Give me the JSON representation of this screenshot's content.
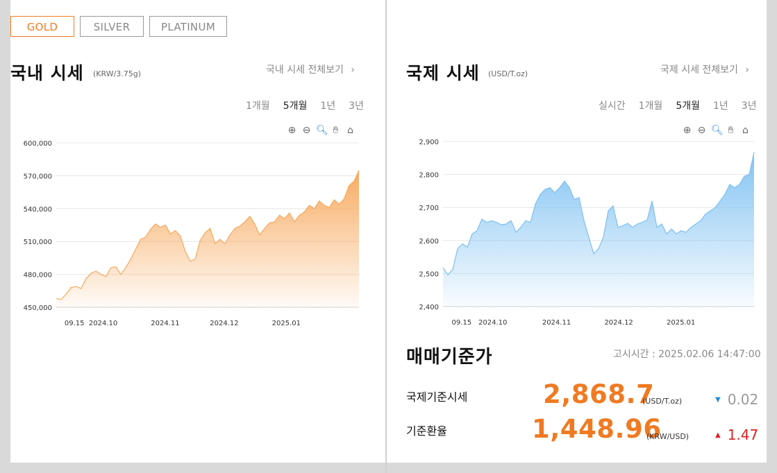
{
  "metal_tabs": [
    {
      "label": "GOLD",
      "active": true
    },
    {
      "label": "SILVER",
      "active": false
    },
    {
      "label": "PLATINUM",
      "active": false
    }
  ],
  "domestic": {
    "title": "국내 시세",
    "unit": "(KRW/3.75g)",
    "more_link": "국내 시세 전체보기",
    "periods": [
      "1개월",
      "5개월",
      "1년",
      "3년"
    ],
    "selected_period": "5개월",
    "chart_data": {
      "type": "area",
      "color": "#f7a75a",
      "yticks": [
        "600,000",
        "570,000",
        "540,000",
        "510,000",
        "480,000",
        "450,000"
      ],
      "ylim": [
        450000,
        600000
      ],
      "xticks": [
        "09.15",
        "2024.10",
        "2024.11",
        "2024.12",
        "2025.01"
      ],
      "y": [
        458000,
        457000,
        462000,
        468000,
        469000,
        467000,
        476000,
        481000,
        483000,
        480000,
        478000,
        486000,
        487000,
        480000,
        486000,
        494000,
        503000,
        512000,
        514000,
        521000,
        526000,
        523000,
        525000,
        517000,
        520000,
        515000,
        501000,
        492000,
        494000,
        511000,
        518000,
        522000,
        508000,
        512000,
        508000,
        516000,
        522000,
        524000,
        528000,
        533000,
        526000,
        516000,
        522000,
        527000,
        528000,
        534000,
        531000,
        536000,
        528000,
        534000,
        537000,
        543000,
        540000,
        547000,
        543000,
        541000,
        548000,
        544000,
        549000,
        561000,
        565000,
        575000
      ]
    }
  },
  "international": {
    "title": "국제 시세",
    "unit": "(USD/T.oz)",
    "more_link": "국제 시세 전체보기",
    "periods": [
      "실시간",
      "1개월",
      "5개월",
      "1년",
      "3년"
    ],
    "selected_period": "5개월",
    "chart_data": {
      "type": "area",
      "color": "#7cc0f2",
      "yticks": [
        "2,900",
        "2,800",
        "2,700",
        "2,600",
        "2,500",
        "2,400"
      ],
      "ylim": [
        2400,
        2900
      ],
      "xticks": [
        "09.15",
        "2024.10",
        "2024.11",
        "2024.12",
        "2025.01"
      ],
      "y": [
        2518,
        2496,
        2512,
        2575,
        2590,
        2580,
        2620,
        2630,
        2665,
        2655,
        2660,
        2655,
        2648,
        2650,
        2660,
        2625,
        2640,
        2660,
        2655,
        2710,
        2740,
        2755,
        2760,
        2745,
        2760,
        2780,
        2760,
        2725,
        2730,
        2660,
        2610,
        2560,
        2575,
        2610,
        2690,
        2705,
        2640,
        2645,
        2652,
        2640,
        2650,
        2655,
        2662,
        2720,
        2640,
        2650,
        2620,
        2635,
        2620,
        2630,
        2625,
        2640,
        2650,
        2660,
        2680,
        2690,
        2700,
        2720,
        2740,
        2770,
        2760,
        2770,
        2795,
        2800,
        2868
      ]
    }
  },
  "trade": {
    "title": "매매기준가",
    "notice": "고시시간 : 2025.02.06 14:47:00",
    "rows": [
      {
        "label": "국제기준시세",
        "value": "2,868.7",
        "unit": "(USD/T.oz)",
        "change": "0.02",
        "direction": "down"
      },
      {
        "label": "기준환율",
        "value": "1,448.96",
        "unit": "(KRW/USD)",
        "change": "1.47",
        "direction": "up"
      }
    ]
  }
}
